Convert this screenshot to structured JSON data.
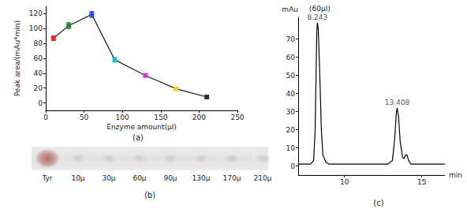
{
  "chart_data": [
    {
      "type": "line",
      "caption": "(a)",
      "x_label": "Enzyme amount(μl)",
      "y_label": "Peak area/(mAu*min)",
      "x": [
        10,
        30,
        60,
        90,
        130,
        170,
        210
      ],
      "values": [
        87,
        104,
        119,
        58,
        37,
        19,
        8
      ],
      "errors": [
        3,
        4,
        4,
        3,
        2,
        1,
        1
      ],
      "colors": [
        "#e0302a",
        "#2e7d32",
        "#2b4fd8",
        "#19c3d6",
        "#d63ad6",
        "#e8d21a",
        "#333333"
      ],
      "color": "#222222",
      "marker": "square",
      "xlim": [
        0,
        250
      ],
      "xticks": [
        0,
        50,
        100,
        150,
        200,
        250
      ],
      "ylim": [
        -10,
        130
      ],
      "yticks": [
        0,
        20,
        40,
        60,
        80,
        100,
        120
      ],
      "grid": false
    },
    {
      "type": "line",
      "caption": "(c)",
      "title": "(60μl)",
      "x_label": "min",
      "y_label": "mAu",
      "x": [
        7.0,
        7.8,
        8.0,
        8.1,
        8.2,
        8.243,
        8.3,
        8.4,
        8.5,
        8.6,
        8.8,
        9.0,
        12.8,
        13.1,
        13.25,
        13.35,
        13.408,
        13.5,
        13.6,
        13.75,
        13.85,
        13.95,
        14.05,
        14.15,
        14.3,
        16.5
      ],
      "values": [
        1,
        1,
        3,
        20,
        72,
        79,
        76,
        50,
        20,
        6,
        2,
        1,
        1,
        3,
        15,
        29,
        32,
        27,
        14,
        5,
        4,
        6,
        6,
        3,
        1,
        1
      ],
      "color": "#000000",
      "marker": "none",
      "xlim": [
        7,
        16.5
      ],
      "xticks": [
        10,
        15
      ],
      "ylim": [
        -5,
        82
      ],
      "yticks": [
        0,
        10,
        20,
        30,
        40,
        50,
        60,
        70
      ],
      "annotations": [
        {
          "x": 8.243,
          "y": 79,
          "text": "8.243"
        },
        {
          "x": 13.408,
          "y": 32,
          "text": "13.408"
        }
      ],
      "grid": false
    }
  ],
  "gel": {
    "caption": "(b)",
    "lanes": [
      "Tyr",
      "10μ",
      "30μ",
      "60μ",
      "90μ",
      "130μ",
      "170μ",
      "210μ"
    ]
  }
}
